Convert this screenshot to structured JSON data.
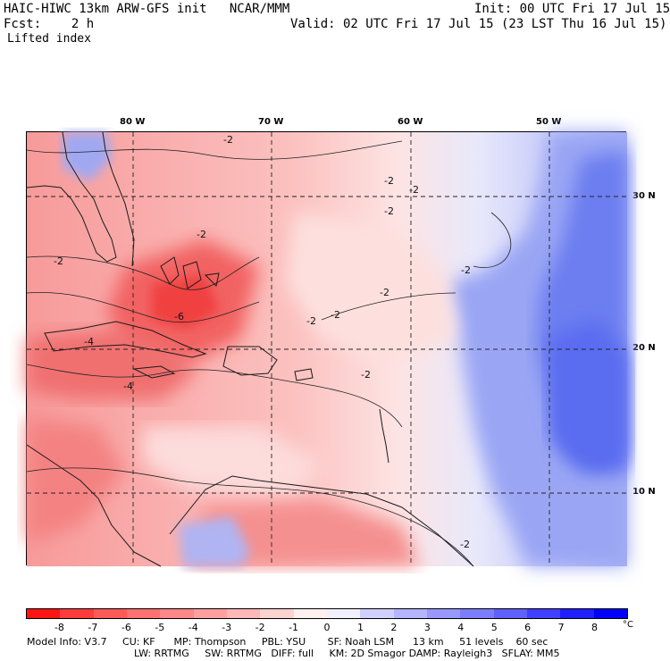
{
  "header": {
    "model_title": "HAIC-HIWC 13km ARW-GFS init   NCAR/MMM",
    "init_time": "Init: 00 UTC Fri 17 Jul 15",
    "forecast_label": "Fcst:    2 h",
    "valid_time": "Valid: 02 UTC Fri 17 Jul 15 (23 LST Thu 16 Jul 15)",
    "field_name": "Lifted index"
  },
  "map": {
    "lon_labels": [
      "80 W",
      "70 W",
      "60 W",
      "50 W"
    ],
    "lat_labels": [
      "30 N",
      "20 N",
      "10 N"
    ],
    "contour_labels": [
      "-2",
      "-2",
      "-2",
      "-2",
      "-2",
      "-2",
      "-2",
      "-2",
      "-2",
      "-2",
      "-4",
      "-4",
      "-6",
      "-2",
      "-2"
    ]
  },
  "colorbar": {
    "labels": [
      "-8",
      "-7",
      "-6",
      "-5",
      "-4",
      "-3",
      "-2",
      "-1",
      "0",
      "1",
      "2",
      "3",
      "4",
      "5",
      "6",
      "7",
      "8"
    ],
    "unit": "°C",
    "colors": [
      "#ff1414",
      "#ff3c3c",
      "#ff5a5a",
      "#ff7070",
      "#ff8787",
      "#ffa0a0",
      "#ffb7b7",
      "#ffd2d2",
      "#fff0f0",
      "#f0f0ff",
      "#d0d0ff",
      "#b4b4ff",
      "#9898ff",
      "#7c7cff",
      "#6060ff",
      "#4040ff",
      "#2020ff",
      "#0000ff"
    ]
  },
  "footer": {
    "line1": "Model Info: V3.7     CU: KF      MP: Thompson     PBL: YSU       SF: Noah LSM      13 km     51 levels    60 sec",
    "line2": "LW: RRTMG     SW: RRTMG   DIFF: full     KM: 2D Smagor DAMP: Rayleigh3   SFLAY: MM5"
  }
}
